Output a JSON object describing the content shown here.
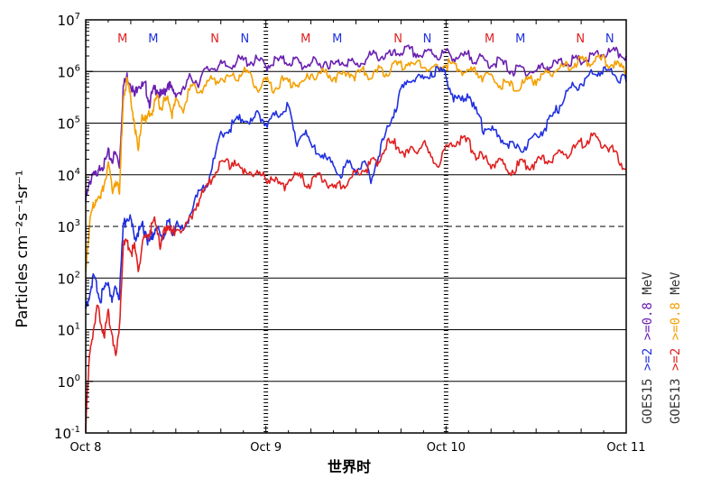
{
  "chart_data": {
    "type": "line",
    "xlabel": "世界时",
    "ylabel": "Particles cm⁻²s⁻¹sr⁻¹",
    "xlim": [
      0,
      72
    ],
    "ylim_log10": [
      -1,
      7
    ],
    "x_unit": "hours since Oct 8 00:00 UT",
    "x_ticks": [
      {
        "value": 0,
        "label": "Oct 8"
      },
      {
        "value": 24,
        "label": "Oct 9"
      },
      {
        "value": 48,
        "label": "Oct 10"
      },
      {
        "value": 72,
        "label": "Oct 11"
      }
    ],
    "y_ticks": [
      {
        "exp": -1,
        "base": "10",
        "sup": "-1"
      },
      {
        "exp": 0,
        "base": "10",
        "sup": "0"
      },
      {
        "exp": 1,
        "base": "10",
        "sup": "1"
      },
      {
        "exp": 2,
        "base": "10",
        "sup": "2"
      },
      {
        "exp": 3,
        "base": "10",
        "sup": "3"
      },
      {
        "exp": 4,
        "base": "10",
        "sup": "4"
      },
      {
        "exp": 5,
        "base": "10",
        "sup": "5"
      },
      {
        "exp": 6,
        "base": "10",
        "sup": "6"
      },
      {
        "exp": 7,
        "base": "10",
        "sup": "7"
      }
    ],
    "hlines": [
      {
        "y": 0,
        "style": "solid"
      },
      {
        "y": 1,
        "style": "solid"
      },
      {
        "y": 2,
        "style": "solid"
      },
      {
        "y": 3,
        "style": "dashed"
      },
      {
        "y": 4,
        "style": "solid"
      },
      {
        "y": 5,
        "style": "solid"
      },
      {
        "y": 6,
        "style": "solid"
      }
    ],
    "markers": [
      {
        "x": 4.9,
        "text": "M",
        "color": "#e02020"
      },
      {
        "x": 9.0,
        "text": "M",
        "color": "#2030e0"
      },
      {
        "x": 17.2,
        "text": "N",
        "color": "#e02020"
      },
      {
        "x": 21.2,
        "text": "N",
        "color": "#2030e0"
      },
      {
        "x": 29.3,
        "text": "M",
        "color": "#e02020"
      },
      {
        "x": 33.5,
        "text": "M",
        "color": "#2030e0"
      },
      {
        "x": 41.6,
        "text": "N",
        "color": "#e02020"
      },
      {
        "x": 45.5,
        "text": "N",
        "color": "#2030e0"
      },
      {
        "x": 53.8,
        "text": "M",
        "color": "#e02020"
      },
      {
        "x": 57.9,
        "text": "M",
        "color": "#2030e0"
      },
      {
        "x": 65.9,
        "text": "N",
        "color": "#e02020"
      },
      {
        "x": 69.8,
        "text": "N",
        "color": "#2030e0"
      }
    ],
    "legend": [
      {
        "label": "GOES15",
        "color": "#333333",
        "column": 0
      },
      {
        "label": ">=2",
        "color": "#2030e0",
        "column": 0
      },
      {
        "label": ">=0.8",
        "color": "#6a1fb0",
        "column": 0
      },
      {
        "label": "MeV",
        "color": "#333333",
        "column": 0
      },
      {
        "label": "GOES13",
        "color": "#333333",
        "column": 1
      },
      {
        "label": ">=2",
        "color": "#e02020",
        "column": 1
      },
      {
        "label": ">=0.8",
        "color": "#f5a000",
        "column": 1
      },
      {
        "label": "MeV",
        "color": "#333333",
        "column": 1
      }
    ],
    "series": [
      {
        "instrument": "GOES15",
        "energy": ">=0.8",
        "color": "#6a1fb0",
        "x": [
          0,
          0.5,
          1,
          1.5,
          2,
          2.5,
          3,
          3.5,
          4,
          4.5,
          5,
          5.5,
          6,
          6.5,
          7,
          7.5,
          8,
          8.5,
          9,
          9.5,
          10,
          10.5,
          11,
          11.5,
          12,
          13,
          14,
          15,
          16,
          17,
          18,
          19,
          20,
          21,
          22,
          23,
          24,
          25,
          26,
          27,
          28,
          29,
          30,
          31,
          32,
          33,
          34,
          35,
          36,
          37,
          38,
          39,
          40,
          41,
          42,
          43,
          44,
          45,
          46,
          47,
          48,
          49,
          50,
          51,
          52,
          53,
          54,
          55,
          56,
          57,
          58,
          59,
          60,
          61,
          62,
          63,
          64,
          65,
          66,
          67,
          68,
          69,
          70,
          71,
          72
        ],
        "y": [
          3.5,
          3.8,
          4.1,
          3.9,
          4.2,
          4.2,
          4.4,
          4.3,
          4.4,
          4.2,
          5.7,
          5.9,
          5.8,
          5.5,
          5.8,
          5.7,
          5.7,
          5.4,
          5.6,
          5.7,
          5.5,
          5.6,
          5.8,
          5.6,
          5.6,
          5.6,
          5.9,
          5.8,
          6.0,
          6.1,
          6.1,
          6.1,
          6.2,
          6.2,
          6.2,
          6.2,
          6.1,
          6.2,
          6.2,
          6.2,
          6.2,
          6.1,
          6.2,
          6.1,
          6.2,
          6.1,
          6.2,
          6.2,
          6.1,
          6.2,
          6.3,
          6.3,
          6.3,
          6.3,
          6.4,
          6.4,
          6.35,
          6.3,
          6.4,
          6.3,
          6.35,
          6.3,
          6.25,
          6.3,
          6.25,
          6.2,
          6.15,
          6.2,
          6.1,
          6.0,
          6.05,
          6.0,
          6.0,
          6.1,
          6.1,
          6.15,
          6.2,
          6.2,
          6.2,
          6.25,
          6.3,
          6.35,
          6.35,
          6.35,
          6.3
        ]
      },
      {
        "instrument": "GOES13",
        "energy": ">=0.8",
        "color": "#f5a000",
        "x": [
          0,
          0.5,
          1,
          1.5,
          2,
          2.5,
          3,
          3.5,
          4,
          4.5,
          5,
          5.5,
          6,
          6.5,
          7,
          7.5,
          8,
          8.5,
          9,
          9.5,
          10,
          10.5,
          11,
          11.5,
          12,
          13,
          14,
          15,
          16,
          17,
          18,
          19,
          20,
          21,
          22,
          23,
          24,
          25,
          26,
          27,
          28,
          29,
          30,
          31,
          32,
          33,
          34,
          35,
          36,
          37,
          38,
          39,
          40,
          41,
          42,
          43,
          44,
          45,
          46,
          47,
          48,
          49,
          50,
          51,
          52,
          53,
          54,
          55,
          56,
          57,
          58,
          59,
          60,
          61,
          62,
          63,
          64,
          65,
          66,
          67,
          68,
          69,
          70,
          71,
          72
        ],
        "y": [
          2.2,
          3.0,
          3.4,
          3.6,
          3.5,
          3.9,
          4.2,
          3.7,
          3.9,
          3.6,
          5.5,
          5.8,
          5.5,
          5.0,
          4.4,
          5.2,
          5.0,
          5.2,
          5.3,
          5.5,
          5.3,
          5.4,
          5.5,
          5.2,
          5.4,
          5.3,
          5.7,
          5.6,
          5.8,
          5.8,
          5.9,
          5.9,
          5.9,
          6.0,
          5.9,
          5.7,
          5.8,
          5.7,
          5.8,
          5.8,
          5.8,
          5.7,
          6.0,
          5.9,
          6.0,
          5.9,
          5.9,
          6.0,
          5.9,
          6.0,
          5.9,
          6.0,
          6.0,
          6.1,
          6.1,
          6.2,
          6.1,
          6.1,
          6.0,
          6.1,
          6.15,
          6.1,
          6.05,
          6.0,
          6.0,
          5.9,
          5.85,
          5.8,
          5.7,
          5.7,
          5.75,
          5.8,
          5.85,
          5.9,
          6.0,
          6.05,
          6.1,
          6.15,
          6.2,
          6.2,
          6.25,
          6.2,
          6.15,
          6.1,
          6.0
        ]
      },
      {
        "instrument": "GOES15",
        "energy": ">=2",
        "color": "#2030e0",
        "x": [
          0,
          0.5,
          1,
          1.5,
          2,
          2.5,
          3,
          3.5,
          4,
          4.5,
          5,
          5.5,
          6,
          6.5,
          7,
          7.5,
          8,
          8.5,
          9,
          9.5,
          10,
          10.5,
          11,
          11.5,
          12,
          13,
          14,
          15,
          16,
          17,
          18,
          19,
          20,
          21,
          22,
          23,
          24,
          25,
          26,
          27,
          28,
          29,
          30,
          31,
          32,
          33,
          34,
          35,
          36,
          37,
          38,
          39,
          40,
          41,
          42,
          43,
          44,
          45,
          46,
          47,
          48,
          49,
          50,
          51,
          52,
          53,
          54,
          55,
          56,
          57,
          58,
          59,
          60,
          61,
          62,
          63,
          64,
          65,
          66,
          67,
          68,
          69,
          70,
          71,
          72
        ],
        "y": [
          1.4,
          1.7,
          2.0,
          1.8,
          1.6,
          1.8,
          2.0,
          1.5,
          1.9,
          1.6,
          3.0,
          3.2,
          3.1,
          2.8,
          2.9,
          3.0,
          2.9,
          2.6,
          2.9,
          3.0,
          2.7,
          2.9,
          3.1,
          2.9,
          3.0,
          2.9,
          3.3,
          3.6,
          3.8,
          4.2,
          4.8,
          4.9,
          5.0,
          5.1,
          5.0,
          5.2,
          5.0,
          5.1,
          5.2,
          5.3,
          4.6,
          4.9,
          4.5,
          4.5,
          4.3,
          4.2,
          4.0,
          4.2,
          4.1,
          4.2,
          3.9,
          4.4,
          4.8,
          5.2,
          5.6,
          5.8,
          5.9,
          5.8,
          6.0,
          6.0,
          5.9,
          5.5,
          5.4,
          5.6,
          5.2,
          4.9,
          4.9,
          4.7,
          4.7,
          4.5,
          4.5,
          4.6,
          4.7,
          4.9,
          5.1,
          5.3,
          5.6,
          5.7,
          5.8,
          5.9,
          6.0,
          6.0,
          6.0,
          5.9,
          5.8
        ]
      },
      {
        "instrument": "GOES13",
        "energy": ">=2",
        "color": "#e02020",
        "x": [
          0,
          0.5,
          1,
          1.5,
          2,
          2.5,
          3,
          3.5,
          4,
          4.5,
          5,
          5.5,
          6,
          6.5,
          7,
          7.5,
          8,
          8.5,
          9,
          9.5,
          10,
          10.5,
          11,
          11.5,
          12,
          13,
          14,
          15,
          16,
          17,
          18,
          19,
          20,
          21,
          22,
          23,
          24,
          25,
          26,
          27,
          28,
          29,
          30,
          31,
          32,
          33,
          34,
          35,
          36,
          37,
          38,
          39,
          40,
          41,
          42,
          43,
          44,
          45,
          46,
          47,
          48,
          49,
          50,
          51,
          52,
          53,
          54,
          55,
          56,
          57,
          58,
          59,
          60,
          61,
          62,
          63,
          64,
          65,
          66,
          67,
          68,
          69,
          70,
          71,
          72
        ],
        "y": [
          -0.9,
          0.5,
          1.0,
          1.4,
          1.2,
          0.9,
          1.3,
          1.0,
          0.4,
          1.1,
          2.6,
          2.7,
          2.5,
          2.6,
          2.2,
          2.6,
          2.8,
          2.9,
          3.1,
          3.0,
          2.6,
          2.9,
          3.1,
          2.8,
          3.0,
          2.9,
          3.2,
          3.5,
          3.7,
          4.0,
          4.2,
          4.2,
          4.3,
          4.0,
          4.1,
          4.0,
          3.9,
          4.0,
          3.7,
          3.9,
          4.0,
          3.9,
          3.8,
          4.0,
          3.9,
          3.7,
          3.8,
          3.9,
          4.0,
          4.1,
          4.2,
          4.3,
          4.6,
          4.6,
          4.5,
          4.4,
          4.5,
          4.6,
          4.3,
          4.2,
          4.5,
          4.6,
          4.7,
          4.6,
          4.4,
          4.3,
          4.2,
          4.3,
          4.1,
          4.1,
          4.2,
          4.2,
          4.2,
          4.3,
          4.3,
          4.4,
          4.4,
          4.5,
          4.6,
          4.7,
          4.7,
          4.6,
          4.5,
          4.3,
          4.1
        ]
      }
    ]
  }
}
